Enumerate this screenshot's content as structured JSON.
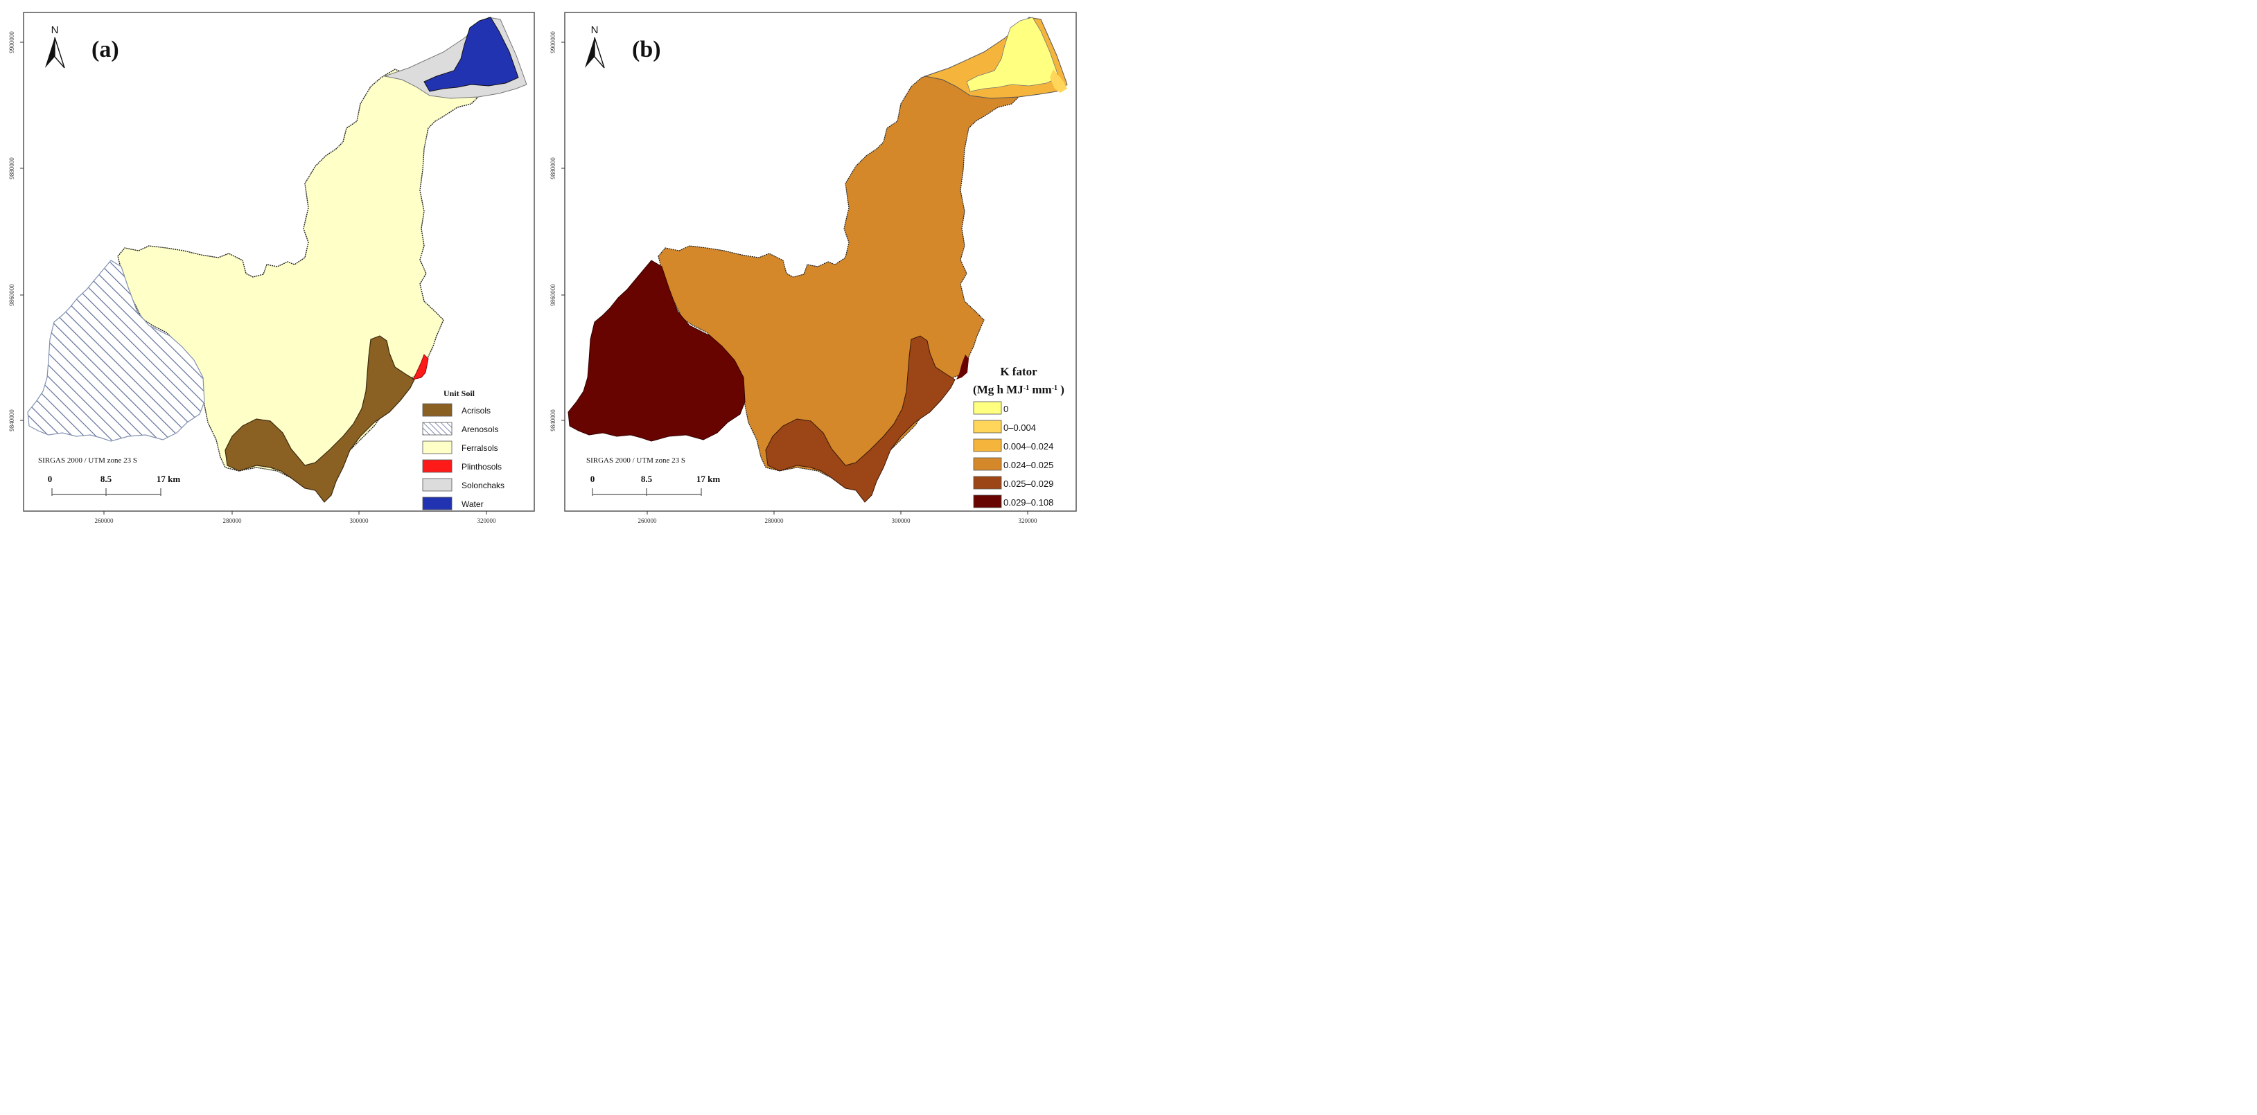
{
  "panels": [
    {
      "letter": "(a)",
      "north_label": "N",
      "y_ticks": [
        "9900000",
        "9880000",
        "9860000",
        "9840000"
      ],
      "x_ticks": [
        "260000",
        "280000",
        "300000",
        "320000"
      ],
      "crs": "SIRGAS 2000 / UTM zone 23 S",
      "scale_labels": [
        "0",
        "8.5",
        "17 km"
      ],
      "legend": {
        "title": "Unit Soil",
        "items": [
          {
            "label": "Acrisols",
            "color": "#8b6023",
            "pattern": "solid"
          },
          {
            "label": "Arenosols",
            "color": "#5f6f99",
            "pattern": "hatch"
          },
          {
            "label": "Ferralsols",
            "color": "#ffffc8",
            "pattern": "solid"
          },
          {
            "label": "Plinthosols",
            "color": "#ff1a1a",
            "pattern": "solid"
          },
          {
            "label": "Solonchaks",
            "color": "#dcdcdc",
            "pattern": "solid"
          },
          {
            "label": "Water",
            "color": "#2233b2",
            "pattern": "solid"
          }
        ]
      }
    },
    {
      "letter": "(b)",
      "north_label": "N",
      "y_ticks": [
        "9900000",
        "9880000",
        "9860000",
        "9840000"
      ],
      "x_ticks": [
        "260000",
        "280000",
        "300000",
        "320000"
      ],
      "crs": "SIRGAS 2000 / UTM zone 23 S",
      "scale_labels": [
        "0",
        "8.5",
        "17 km"
      ],
      "legend": {
        "title_line1": "K fator",
        "title_line2_pre": "(Mg h MJ",
        "title_line2_sup1": "-1",
        "title_line2_mid": " mm",
        "title_line2_sup2": "-1",
        "title_line2_post": " )",
        "items": [
          {
            "label": "0",
            "color": "#ffff80"
          },
          {
            "label": "0‒0.004",
            "color": "#ffd65a"
          },
          {
            "label": "0.004‒0.024",
            "color": "#f5b43c"
          },
          {
            "label": "0.024‒0.025",
            "color": "#d4882a"
          },
          {
            "label": "0.025‒0.029",
            "color": "#9c4516"
          },
          {
            "label": "0.029‒0.108",
            "color": "#680400"
          }
        ]
      }
    }
  ]
}
